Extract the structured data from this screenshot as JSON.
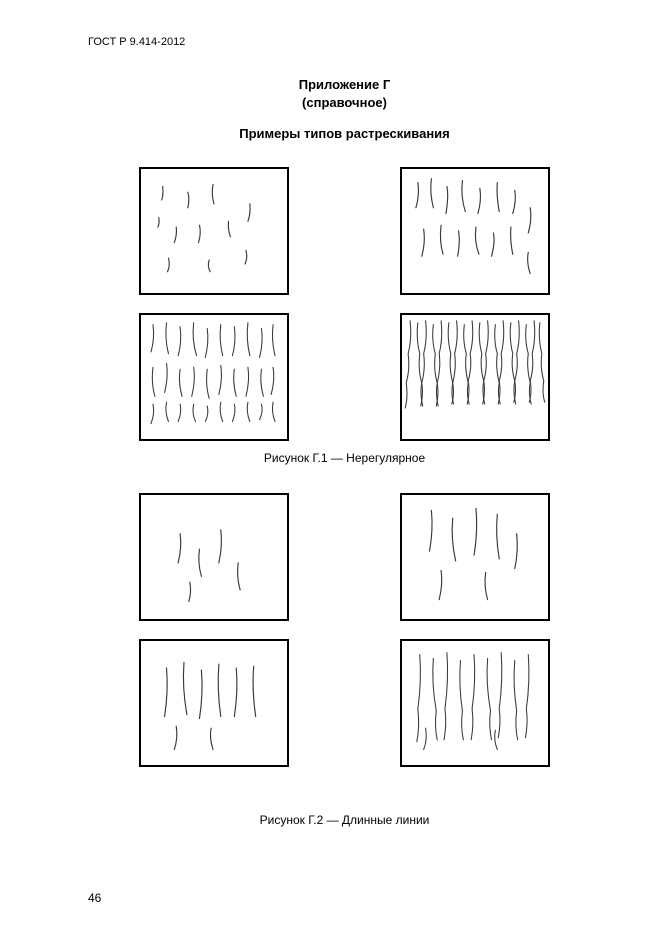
{
  "document": {
    "id": "ГОСТ Р 9.414-2012",
    "appendix_title_line1": "Приложение Г",
    "appendix_title_line2": "(справочное)",
    "section_title": "Примеры типов растрескивания",
    "page_number": "46"
  },
  "figures": {
    "g1": {
      "caption": "Рисунок  Г.1 — Нерегулярное",
      "panel_border_color": "#000000",
      "background_color": "#ffffff",
      "crack_color": "#3a3a3a",
      "stroke_width": 1.2,
      "panels": [
        {
          "density": "sparse",
          "cracks": [
            "M22 18 q1 8 -1 14",
            "M48 24 q2 6 0 16",
            "M74 16 q-2 10 1 20",
            "M36 60 q1 8 -2 16",
            "M60 58 q2 8 -1 18",
            "M90 54 q-1 8 2 16",
            "M28 92 q2 8 -1 14",
            "M70 94 q-2 6 1 12",
            "M112 36 q1 10 -2 18",
            "M108 84 q2 8 -1 14",
            "M18 50 q1 6 -1 10"
          ]
        },
        {
          "density": "medium",
          "cracks": [
            "M16 14 q2 12 -2 26",
            "M30 10 q-2 14 2 30",
            "M46 18 q2 10 -1 28",
            "M62 12 q-2 16 3 32",
            "M80 20 q2 12 -2 26",
            "M98 14 q-1 14 2 30",
            "M116 22 q2 10 -2 24",
            "M22 62 q2 14 -2 28",
            "M40 58 q-2 16 2 30",
            "M58 64 q2 12 -1 26",
            "M76 60 q-2 14 3 28",
            "M94 66 q2 10 -2 24",
            "M112 60 q-1 14 2 28",
            "M132 40 q2 12 -2 26",
            "M130 86 q-2 10 2 22"
          ]
        },
        {
          "density": "dense",
          "cracks": [
            "M12 10 q2 14 -2 28",
            "M12 54 q-2 16 2 30",
            "M12 92 q2 10 -2 20",
            "M26 8 q-2 16 2 32",
            "M26 50 q2 14 -2 30",
            "M26 90 q-2 10 2 20",
            "M40 12 q2 16 -2 30",
            "M40 56 q-2 14 2 28",
            "M40 92 q2 8 -2 18",
            "M54 8 q-2 18 3 34",
            "M54 54 q2 14 -2 30",
            "M54 92 q-2 10 2 18",
            "M68 14 q2 14 -2 30",
            "M68 56 q-2 16 2 30",
            "M68 94 q2 8 -2 16",
            "M82 10 q-2 16 2 32",
            "M82 52 q2 14 -2 30",
            "M82 90 q-2 10 2 20",
            "M96 12 q2 16 -2 30",
            "M96 56 q-2 14 2 28",
            "M96 92 q2 8 -2 18",
            "M110 8 q-2 18 2 34",
            "M110 54 q2 14 -2 30",
            "M110 90 q-2 10 2 20",
            "M124 14 q2 14 -2 30",
            "M124 56 q-2 14 2 28",
            "M124 92 q2 8 -2 16",
            "M136 10 q-2 16 2 32",
            "M136 54 q2 14 -2 28",
            "M136 90 q-2 10 2 20"
          ]
        },
        {
          "density": "very-dense",
          "cracks": [
            "M8 6 q2 18 -2 34 q2 16 -2 30 q2 14 -1 26",
            "M16 8 q-2 16 2 32 q-2 16 2 30 q-2 12 1 24",
            "M24 6 q2 18 -2 34 q2 16 -2 30 q2 12 -1 24",
            "M32 10 q-2 16 2 30 q-2 16 2 30 q-2 12 1 24",
            "M40 6 q2 18 -2 34 q2 14 -2 30 q2 12 -1 24",
            "M48 8 q-2 16 2 32 q-2 14 2 30 q-2 12 1 22",
            "M56 6 q2 18 -2 34 q2 14 -2 30 q2 12 -1 22",
            "M64 10 q-2 16 2 30 q-2 14 2 30 q-2 12 1 22",
            "M72 6 q2 18 -2 34 q2 14 -2 28 q2 12 -1 24",
            "M80 8 q-2 16 2 32 q-2 14 2 28 q-2 12 1 24",
            "M88 6 q2 18 -2 34 q2 14 -2 28 q2 12 -1 24",
            "M96 10 q-2 16 2 30 q-2 14 2 30 q-2 10 1 22",
            "M104 6 q2 18 -2 34 q2 14 -2 28 q2 12 -1 24",
            "M112 8 q-2 16 2 32 q-2 14 2 28 q-2 12 1 24",
            "M120 6 q2 18 -2 34 q2 14 -2 28 q2 12 -1 22",
            "M128 10 q-2 16 2 30 q-2 14 2 30 q-2 10 1 22",
            "M136 6 q2 18 -2 34 q2 14 -2 28 q2 12 -1 22",
            "M142 8 q-2 16 2 32 q-2 14 2 28 q-2 12 1 22"
          ]
        }
      ]
    },
    "g2": {
      "caption": "Рисунок  Г.2 — Длинные линии",
      "panel_border_color": "#000000",
      "background_color": "#ffffff",
      "crack_color": "#3a3a3a",
      "stroke_width": 1.2,
      "panels": [
        {
          "density": "sparse",
          "cracks": [
            "M40 40 q2 14 -2 30",
            "M60 56 q-2 14 2 28",
            "M82 36 q2 16 -2 34",
            "M50 90 q2 10 -1 20",
            "M100 70 q-2 14 2 28"
          ]
        },
        {
          "density": "medium",
          "cracks": [
            "M30 16 q2 20 -2 42",
            "M52 24 q-2 22 3 44",
            "M76 14 q2 24 -2 48",
            "M98 20 q-2 22 2 46",
            "M40 78 q2 14 -2 30",
            "M86 80 q-2 14 2 28",
            "M118 40 q2 18 -2 36"
          ]
        },
        {
          "density": "dense",
          "cracks": [
            "M26 28 q2 24 -2 50",
            "M44 22 q-2 26 3 54",
            "M62 30 q2 24 -2 50",
            "M80 24 q-2 26 2 54",
            "M98 28 q2 24 -2 50",
            "M116 26 q-2 24 2 52",
            "M36 88 q2 12 -2 24",
            "M72 90 q-2 10 2 22"
          ]
        },
        {
          "density": "very-dense",
          "cracks": [
            "M18 14 q2 28 -2 56 q2 18 -1 34",
            "M32 18 q-2 26 3 54 q-2 16 1 30",
            "M46 12 q2 28 -2 58 q2 16 -1 32",
            "M60 20 q-2 26 2 52 q-2 16 1 30",
            "M74 14 q2 28 -2 56 q2 16 -1 32",
            "M88 18 q-2 26 3 54 q-2 14 1 30",
            "M102 12 q2 28 -2 58 q2 14 -1 30",
            "M116 20 q-2 26 2 52 q-2 16 1 30",
            "M130 14 q2 28 -2 56 q2 14 -1 30",
            "M24 90 q2 12 -2 22",
            "M96 92 q-2 10 2 20"
          ]
        }
      ]
    }
  }
}
